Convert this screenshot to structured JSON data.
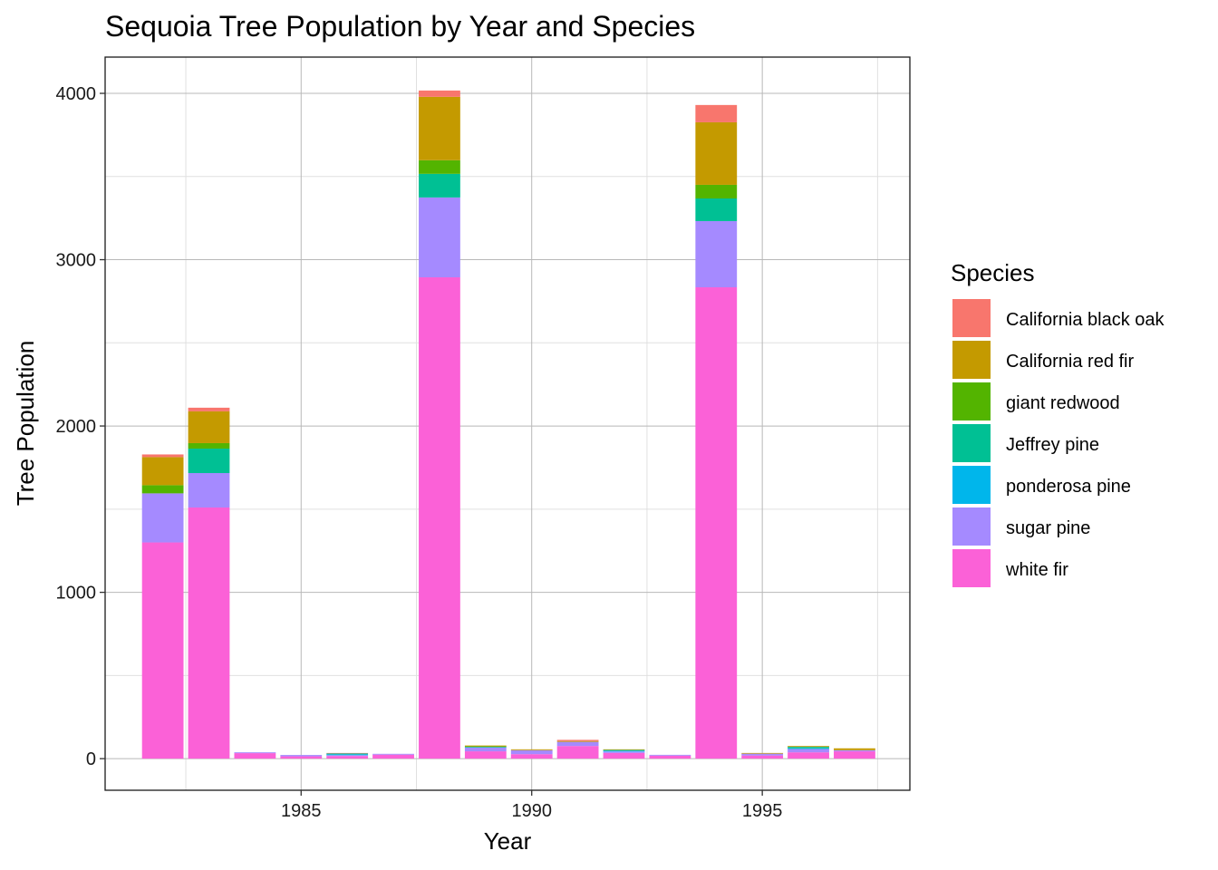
{
  "chart_data": {
    "type": "bar",
    "stacked": true,
    "title": "Sequoia Tree Population by Year and Species",
    "xlabel": "Year",
    "ylabel": "Tree Population",
    "xlim": [
      1980.75,
      1998.2
    ],
    "ylim": [
      -190,
      4218
    ],
    "x_ticks": [
      1985,
      1990,
      1995
    ],
    "x_tick_labels": [
      "1985",
      "1990",
      "1995"
    ],
    "x_minor_ticks": [
      1982.5,
      1987.5,
      1992.5,
      1997.5
    ],
    "y_ticks": [
      0,
      1000,
      2000,
      3000,
      4000
    ],
    "y_tick_labels": [
      "0",
      "1000",
      "2000",
      "3000",
      "4000"
    ],
    "y_minor_ticks": [
      500,
      1500,
      2500,
      3500
    ],
    "grid": true,
    "legend": {
      "title": "Species",
      "position": "right"
    },
    "categories": [
      1982,
      1983,
      1984,
      1985,
      1986,
      1987,
      1988,
      1989,
      1990,
      1991,
      1992,
      1993,
      1994,
      1995,
      1996,
      1997
    ],
    "series": [
      {
        "name": "California black oak",
        "color": "#F8766D",
        "values": [
          16,
          22,
          0,
          0,
          3,
          0,
          38,
          0,
          0,
          7,
          0,
          0,
          104,
          0,
          0,
          0
        ]
      },
      {
        "name": "California red fir",
        "color": "#C49A00",
        "values": [
          169,
          191,
          0,
          0,
          0,
          0,
          381,
          5,
          5,
          5,
          4,
          0,
          376,
          4,
          5,
          11
        ]
      },
      {
        "name": "giant redwood",
        "color": "#53B400",
        "values": [
          49,
          33,
          0,
          0,
          0,
          0,
          82,
          4,
          0,
          0,
          0,
          0,
          82,
          0,
          0,
          0
        ]
      },
      {
        "name": "Jeffrey pine",
        "color": "#00C094",
        "values": [
          0,
          147,
          0,
          0,
          5,
          0,
          142,
          0,
          0,
          0,
          4,
          0,
          136,
          0,
          9,
          0
        ]
      },
      {
        "name": "ponderosa pine",
        "color": "#00B6EB",
        "values": [
          0,
          0,
          0,
          0,
          5,
          0,
          0,
          4,
          0,
          0,
          5,
          0,
          0,
          0,
          4,
          0
        ]
      },
      {
        "name": "sugar pine",
        "color": "#A58AFF",
        "values": [
          295,
          207,
          5,
          8,
          5,
          5,
          480,
          22,
          24,
          25,
          9,
          5,
          398,
          11,
          20,
          7
        ]
      },
      {
        "name": "white fir",
        "color": "#FB61D7",
        "values": [
          1300,
          1510,
          33,
          14,
          16,
          24,
          2894,
          44,
          27,
          76,
          34,
          18,
          2834,
          19,
          38,
          44
        ]
      }
    ]
  }
}
